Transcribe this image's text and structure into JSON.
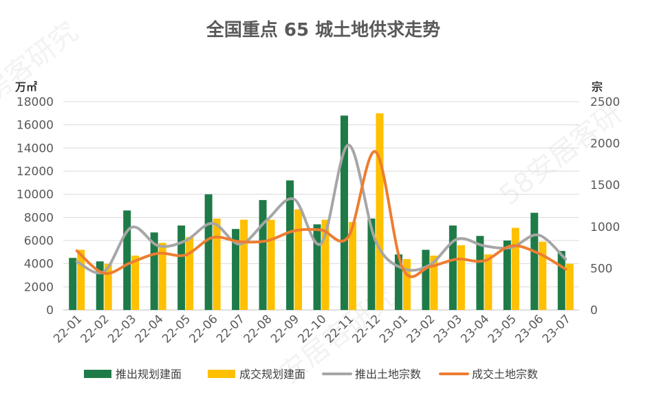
{
  "chart_data": {
    "type": "bar",
    "title": "全国重点 65 城土地供求走势",
    "y_left_unit": "万㎡",
    "y_right_unit": "宗",
    "ylim_left": [
      0,
      18000
    ],
    "ylim_right": [
      0,
      2500
    ],
    "yticks_left": [
      0,
      2000,
      4000,
      6000,
      8000,
      10000,
      12000,
      14000,
      16000,
      18000
    ],
    "yticks_right": [
      0,
      500,
      1000,
      1500,
      2000,
      2500
    ],
    "categories": [
      "22-01",
      "22-02",
      "22-03",
      "22-04",
      "22-05",
      "22-06",
      "22-07",
      "22-08",
      "22-09",
      "22-10",
      "22-11",
      "22-12",
      "23-01",
      "23-02",
      "23-03",
      "23-04",
      "23-05",
      "23-06",
      "23-07"
    ],
    "grid": true,
    "legend_position": "bottom",
    "series": [
      {
        "name": "推出规划建面",
        "type": "bar",
        "axis": "left",
        "color": "#1E7B47",
        "values": [
          4500,
          4200,
          8600,
          6700,
          7300,
          10000,
          7000,
          9500,
          11200,
          7400,
          16800,
          7900,
          4800,
          5200,
          7300,
          6400,
          6000,
          8400,
          5100
        ]
      },
      {
        "name": "成交规划建面",
        "type": "bar",
        "axis": "left",
        "color": "#FFC000",
        "values": [
          5200,
          4000,
          4700,
          5800,
          6300,
          7900,
          7800,
          7800,
          8700,
          7800,
          7600,
          17000,
          4400,
          4700,
          5600,
          4800,
          7100,
          5900,
          4000
        ]
      },
      {
        "name": "推出土地宗数",
        "type": "line",
        "axis": "right",
        "color": "#A6A6A6",
        "values": [
          580,
          460,
          990,
          770,
          830,
          1040,
          790,
          1080,
          1330,
          800,
          1980,
          830,
          500,
          540,
          850,
          770,
          750,
          900,
          610
        ]
      },
      {
        "name": "成交土地宗数",
        "type": "line",
        "axis": "right",
        "color": "#ED7D31",
        "values": [
          710,
          440,
          570,
          680,
          660,
          870,
          820,
          830,
          950,
          960,
          880,
          1900,
          500,
          520,
          610,
          590,
          770,
          680,
          490
        ]
      }
    ]
  },
  "watermarks": [
    "房客研究",
    "58安居客研",
    "安居客研究"
  ]
}
